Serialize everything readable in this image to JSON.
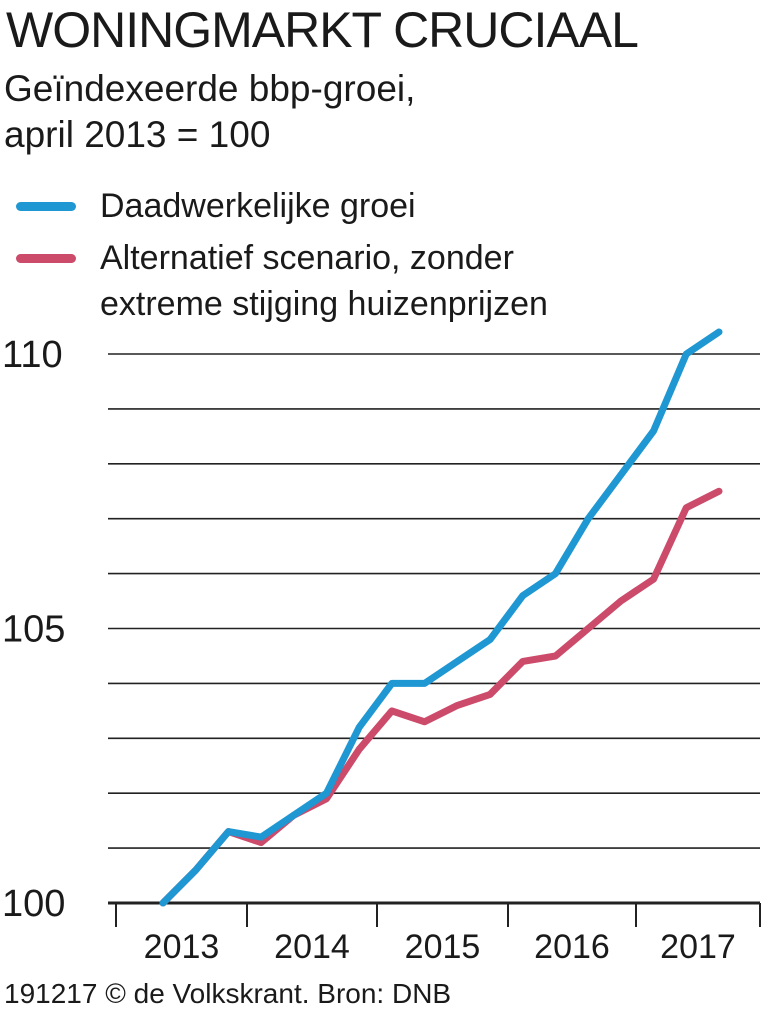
{
  "title": "WONINGMARKT CRUCIAAL",
  "subtitle_line1": "Geïndexeerde bbp-groei,",
  "subtitle_line2": "april 2013 = 100",
  "legend": {
    "actual": "Daadwerkelijke groei",
    "alternative_line1": "Alternatief scenario,  zonder",
    "alternative_line2": "extreme stijging huizenprijzen"
  },
  "footer": "191217 © de Volkskrant. Bron: DNB",
  "colors": {
    "actual": "#1f97d2",
    "alternative": "#cc4a6a",
    "grid": "#222222"
  },
  "chart_data": {
    "type": "line",
    "y_tick_labels": [
      "100",
      "105",
      "110"
    ],
    "x_tick_labels": [
      "2013",
      "2014",
      "2015",
      "2016",
      "2017"
    ],
    "ylim": [
      100,
      110
    ],
    "gridlines": [
      100,
      101,
      102,
      103,
      104,
      105,
      106,
      107,
      108,
      109,
      110
    ],
    "x_period": [
      "2013-Q2",
      "2013-Q3",
      "2013-Q4",
      "2014-Q1",
      "2014-Q2",
      "2014-Q3",
      "2014-Q4",
      "2015-Q1",
      "2015-Q2",
      "2015-Q3",
      "2015-Q4",
      "2016-Q1",
      "2016-Q2",
      "2016-Q3",
      "2016-Q4",
      "2017-Q1",
      "2017-Q2",
      "2017-Q3"
    ],
    "series": [
      {
        "name": "Daadwerkelijke groei",
        "color_key": "actual",
        "values": [
          100.0,
          100.6,
          101.3,
          101.2,
          101.6,
          102.0,
          103.2,
          104.0,
          104.0,
          104.4,
          104.8,
          105.6,
          106.0,
          107.0,
          107.8,
          108.6,
          110.0,
          110.4
        ]
      },
      {
        "name": "Alternatief scenario,  zonder extreme stijging huizenprijzen",
        "color_key": "alternative",
        "values": [
          100.0,
          100.6,
          101.3,
          101.1,
          101.6,
          101.9,
          102.8,
          103.5,
          103.3,
          103.6,
          103.8,
          104.4,
          104.5,
          105.0,
          105.5,
          105.9,
          107.2,
          107.5
        ]
      }
    ]
  }
}
